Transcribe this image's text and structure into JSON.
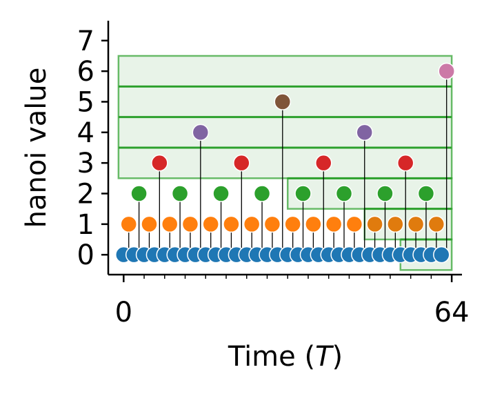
{
  "chart_data": {
    "type": "scatter",
    "xlabel": "Time (",
    "xlabel_var": "T",
    "xlabel_close": ")",
    "ylabel": "hanoi value",
    "xlim": [
      -3,
      66
    ],
    "ylim": [
      -0.65,
      7.65
    ],
    "x_ticks": [
      0,
      64
    ],
    "x_tick_labels": [
      "0",
      "64"
    ],
    "x_minor_ticks": [
      0,
      4,
      8,
      12,
      16,
      20,
      24,
      28,
      32,
      36,
      40,
      44,
      48,
      52,
      56,
      60,
      64
    ],
    "y_ticks": [
      0,
      1,
      2,
      3,
      4,
      5,
      6,
      7
    ],
    "y_tick_labels": [
      "0",
      "1",
      "2",
      "3",
      "4",
      "5",
      "6",
      "7"
    ],
    "grid": false,
    "legend": "none",
    "point_colors": {
      "0": "#1f77b4",
      "1": "#ff7f0e",
      "1b": "#e07b0e",
      "2": "#2ca02c",
      "3": "#d62728",
      "4": "#8064a2",
      "5": "#7f5539",
      "6": "#cc79a7"
    },
    "points": {
      "x": [
        0,
        1,
        2,
        3,
        4,
        5,
        6,
        7,
        8,
        9,
        10,
        11,
        12,
        13,
        14,
        15,
        16,
        17,
        18,
        19,
        20,
        21,
        22,
        23,
        24,
        25,
        26,
        27,
        28,
        29,
        30,
        31,
        32,
        33,
        34,
        35,
        36,
        37,
        38,
        39,
        40,
        41,
        42,
        43,
        44,
        45,
        46,
        47,
        48,
        49,
        50,
        51,
        52,
        53,
        54,
        55,
        56,
        57,
        58,
        59,
        60,
        61,
        62,
        63
      ],
      "y": [
        0,
        1,
        0,
        2,
        0,
        1,
        0,
        3,
        0,
        1,
        0,
        2,
        0,
        1,
        0,
        4,
        0,
        1,
        0,
        2,
        0,
        1,
        0,
        3,
        0,
        1,
        0,
        2,
        0,
        1,
        0,
        5,
        0,
        1,
        0,
        2,
        0,
        1,
        0,
        3,
        0,
        1,
        0,
        2,
        0,
        1,
        0,
        4,
        0,
        1,
        0,
        2,
        0,
        1,
        0,
        3,
        0,
        1,
        0,
        2,
        0,
        1,
        0,
        6
      ]
    },
    "boxes": [
      {
        "x0": -1,
        "x1": 64,
        "y0": 2.5,
        "y1": 6.5,
        "lines": [
          3.5,
          4.5,
          5.5
        ]
      },
      {
        "x0": 32,
        "x1": 64,
        "y0": 1.5,
        "y1": 2.5,
        "lines": []
      },
      {
        "x0": 47,
        "x1": 64,
        "y0": 0.5,
        "y1": 1.5,
        "lines": []
      },
      {
        "x0": 54,
        "x1": 64,
        "y0": -0.5,
        "y1": 0.5,
        "lines": []
      }
    ],
    "box_color": "#2ca02c",
    "box_fill": "#e6f2e6"
  }
}
